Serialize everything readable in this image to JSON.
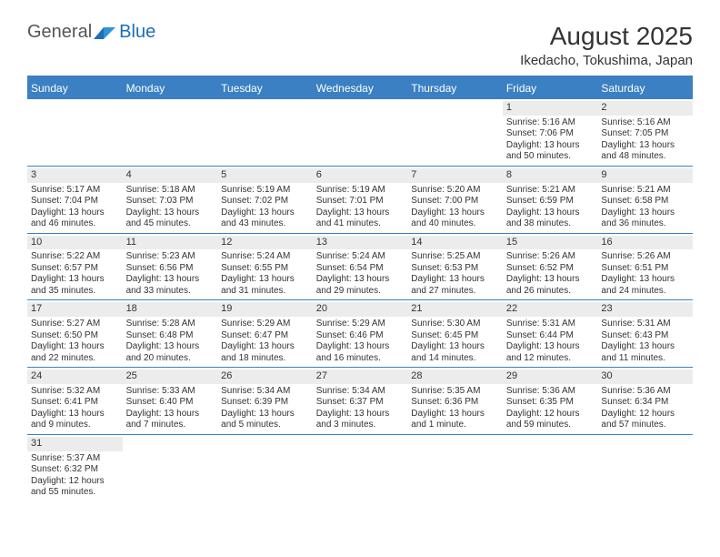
{
  "logo": {
    "text1": "General",
    "text2": "Blue"
  },
  "header": {
    "title": "August 2025",
    "location": "Ikedacho, Tokushima, Japan"
  },
  "days": [
    "Sunday",
    "Monday",
    "Tuesday",
    "Wednesday",
    "Thursday",
    "Friday",
    "Saturday"
  ],
  "colors": {
    "accent": "#3a80c3",
    "daynum_bg": "#ececec",
    "text": "#333333",
    "logo_gray": "#7a7a7a",
    "logo_blue": "#1b6fb5"
  },
  "weeks": [
    [
      null,
      null,
      null,
      null,
      null,
      {
        "n": "1",
        "sunrise": "Sunrise: 5:16 AM",
        "sunset": "Sunset: 7:06 PM",
        "d1": "Daylight: 13 hours",
        "d2": "and 50 minutes."
      },
      {
        "n": "2",
        "sunrise": "Sunrise: 5:16 AM",
        "sunset": "Sunset: 7:05 PM",
        "d1": "Daylight: 13 hours",
        "d2": "and 48 minutes."
      }
    ],
    [
      {
        "n": "3",
        "sunrise": "Sunrise: 5:17 AM",
        "sunset": "Sunset: 7:04 PM",
        "d1": "Daylight: 13 hours",
        "d2": "and 46 minutes."
      },
      {
        "n": "4",
        "sunrise": "Sunrise: 5:18 AM",
        "sunset": "Sunset: 7:03 PM",
        "d1": "Daylight: 13 hours",
        "d2": "and 45 minutes."
      },
      {
        "n": "5",
        "sunrise": "Sunrise: 5:19 AM",
        "sunset": "Sunset: 7:02 PM",
        "d1": "Daylight: 13 hours",
        "d2": "and 43 minutes."
      },
      {
        "n": "6",
        "sunrise": "Sunrise: 5:19 AM",
        "sunset": "Sunset: 7:01 PM",
        "d1": "Daylight: 13 hours",
        "d2": "and 41 minutes."
      },
      {
        "n": "7",
        "sunrise": "Sunrise: 5:20 AM",
        "sunset": "Sunset: 7:00 PM",
        "d1": "Daylight: 13 hours",
        "d2": "and 40 minutes."
      },
      {
        "n": "8",
        "sunrise": "Sunrise: 5:21 AM",
        "sunset": "Sunset: 6:59 PM",
        "d1": "Daylight: 13 hours",
        "d2": "and 38 minutes."
      },
      {
        "n": "9",
        "sunrise": "Sunrise: 5:21 AM",
        "sunset": "Sunset: 6:58 PM",
        "d1": "Daylight: 13 hours",
        "d2": "and 36 minutes."
      }
    ],
    [
      {
        "n": "10",
        "sunrise": "Sunrise: 5:22 AM",
        "sunset": "Sunset: 6:57 PM",
        "d1": "Daylight: 13 hours",
        "d2": "and 35 minutes."
      },
      {
        "n": "11",
        "sunrise": "Sunrise: 5:23 AM",
        "sunset": "Sunset: 6:56 PM",
        "d1": "Daylight: 13 hours",
        "d2": "and 33 minutes."
      },
      {
        "n": "12",
        "sunrise": "Sunrise: 5:24 AM",
        "sunset": "Sunset: 6:55 PM",
        "d1": "Daylight: 13 hours",
        "d2": "and 31 minutes."
      },
      {
        "n": "13",
        "sunrise": "Sunrise: 5:24 AM",
        "sunset": "Sunset: 6:54 PM",
        "d1": "Daylight: 13 hours",
        "d2": "and 29 minutes."
      },
      {
        "n": "14",
        "sunrise": "Sunrise: 5:25 AM",
        "sunset": "Sunset: 6:53 PM",
        "d1": "Daylight: 13 hours",
        "d2": "and 27 minutes."
      },
      {
        "n": "15",
        "sunrise": "Sunrise: 5:26 AM",
        "sunset": "Sunset: 6:52 PM",
        "d1": "Daylight: 13 hours",
        "d2": "and 26 minutes."
      },
      {
        "n": "16",
        "sunrise": "Sunrise: 5:26 AM",
        "sunset": "Sunset: 6:51 PM",
        "d1": "Daylight: 13 hours",
        "d2": "and 24 minutes."
      }
    ],
    [
      {
        "n": "17",
        "sunrise": "Sunrise: 5:27 AM",
        "sunset": "Sunset: 6:50 PM",
        "d1": "Daylight: 13 hours",
        "d2": "and 22 minutes."
      },
      {
        "n": "18",
        "sunrise": "Sunrise: 5:28 AM",
        "sunset": "Sunset: 6:48 PM",
        "d1": "Daylight: 13 hours",
        "d2": "and 20 minutes."
      },
      {
        "n": "19",
        "sunrise": "Sunrise: 5:29 AM",
        "sunset": "Sunset: 6:47 PM",
        "d1": "Daylight: 13 hours",
        "d2": "and 18 minutes."
      },
      {
        "n": "20",
        "sunrise": "Sunrise: 5:29 AM",
        "sunset": "Sunset: 6:46 PM",
        "d1": "Daylight: 13 hours",
        "d2": "and 16 minutes."
      },
      {
        "n": "21",
        "sunrise": "Sunrise: 5:30 AM",
        "sunset": "Sunset: 6:45 PM",
        "d1": "Daylight: 13 hours",
        "d2": "and 14 minutes."
      },
      {
        "n": "22",
        "sunrise": "Sunrise: 5:31 AM",
        "sunset": "Sunset: 6:44 PM",
        "d1": "Daylight: 13 hours",
        "d2": "and 12 minutes."
      },
      {
        "n": "23",
        "sunrise": "Sunrise: 5:31 AM",
        "sunset": "Sunset: 6:43 PM",
        "d1": "Daylight: 13 hours",
        "d2": "and 11 minutes."
      }
    ],
    [
      {
        "n": "24",
        "sunrise": "Sunrise: 5:32 AM",
        "sunset": "Sunset: 6:41 PM",
        "d1": "Daylight: 13 hours",
        "d2": "and 9 minutes."
      },
      {
        "n": "25",
        "sunrise": "Sunrise: 5:33 AM",
        "sunset": "Sunset: 6:40 PM",
        "d1": "Daylight: 13 hours",
        "d2": "and 7 minutes."
      },
      {
        "n": "26",
        "sunrise": "Sunrise: 5:34 AM",
        "sunset": "Sunset: 6:39 PM",
        "d1": "Daylight: 13 hours",
        "d2": "and 5 minutes."
      },
      {
        "n": "27",
        "sunrise": "Sunrise: 5:34 AM",
        "sunset": "Sunset: 6:37 PM",
        "d1": "Daylight: 13 hours",
        "d2": "and 3 minutes."
      },
      {
        "n": "28",
        "sunrise": "Sunrise: 5:35 AM",
        "sunset": "Sunset: 6:36 PM",
        "d1": "Daylight: 13 hours",
        "d2": "and 1 minute."
      },
      {
        "n": "29",
        "sunrise": "Sunrise: 5:36 AM",
        "sunset": "Sunset: 6:35 PM",
        "d1": "Daylight: 12 hours",
        "d2": "and 59 minutes."
      },
      {
        "n": "30",
        "sunrise": "Sunrise: 5:36 AM",
        "sunset": "Sunset: 6:34 PM",
        "d1": "Daylight: 12 hours",
        "d2": "and 57 minutes."
      }
    ],
    [
      {
        "n": "31",
        "sunrise": "Sunrise: 5:37 AM",
        "sunset": "Sunset: 6:32 PM",
        "d1": "Daylight: 12 hours",
        "d2": "and 55 minutes."
      },
      null,
      null,
      null,
      null,
      null,
      null
    ]
  ]
}
